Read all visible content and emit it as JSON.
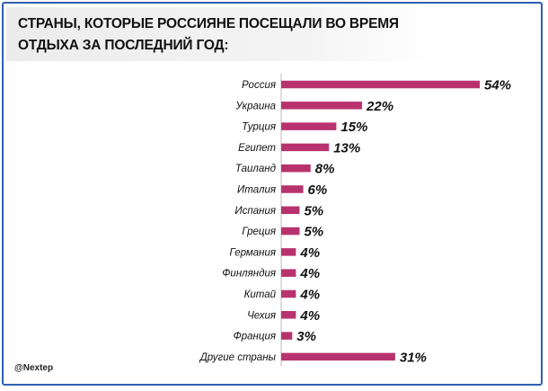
{
  "title": "СТРАНЫ, КОТОРЫЕ РОССИЯНЕ ПОСЕЩАЛИ ВО ВРЕМЯ ОТДЫХА ЗА ПОСЛЕДНИЙ ГОД:",
  "credit": "@Nextep",
  "colors": {
    "bar": "#b8326e",
    "axis": "#bbbbbb",
    "frame": "#2f5fb0"
  },
  "chart_data": {
    "type": "bar",
    "orientation": "horizontal",
    "categories": [
      "Россия",
      "Украина",
      "Турция",
      "Египет",
      "Таиланд",
      "Италия",
      "Испания",
      "Греция",
      "Германия",
      "Финляндия",
      "Китай",
      "Чехия",
      "Франция",
      "Другие страны"
    ],
    "values": [
      54,
      22,
      15,
      13,
      8,
      6,
      5,
      5,
      4,
      4,
      4,
      4,
      3,
      31
    ],
    "value_labels": [
      "54%",
      "22%",
      "15%",
      "13%",
      "8%",
      "6%",
      "5%",
      "5%",
      "4%",
      "4%",
      "4%",
      "4%",
      "3%",
      "31%"
    ],
    "unit": "%",
    "xlim": [
      0,
      54
    ],
    "grid": false,
    "legend": "none"
  }
}
